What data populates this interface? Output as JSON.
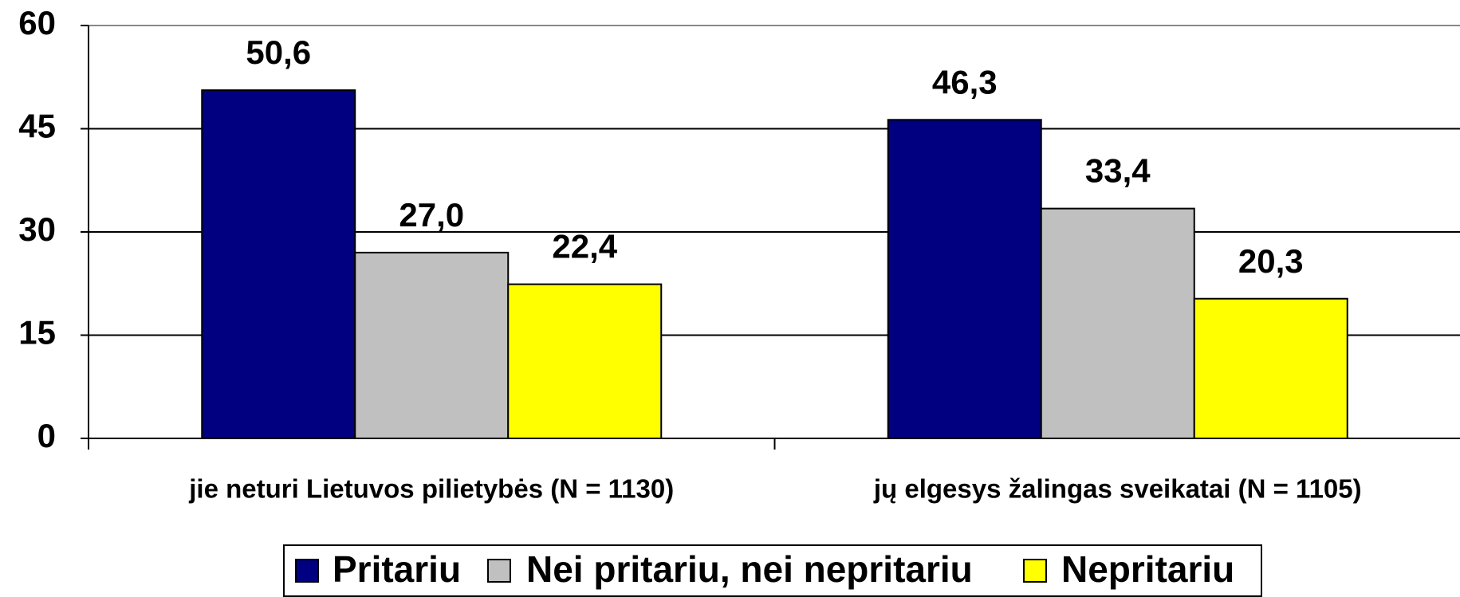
{
  "chart_data": {
    "type": "bar",
    "categories": [
      "jie neturi Lietuvos pilietybės (N = 1130)",
      "jų elgesys žalingas sveikatai (N = 1105)"
    ],
    "series": [
      {
        "name": "Pritariu",
        "color": "#000080",
        "values": [
          50.6,
          46.3
        ],
        "value_labels": [
          "50,6",
          "46,3"
        ]
      },
      {
        "name": "Nei pritariu, nei nepritariu",
        "color": "#c0c0c0",
        "values": [
          27.0,
          33.4
        ],
        "value_labels": [
          "27,0",
          "33,4"
        ]
      },
      {
        "name": "Nepritariu",
        "color": "#ffff00",
        "values": [
          22.4,
          20.3
        ],
        "value_labels": [
          "22,4",
          "20,3"
        ]
      }
    ],
    "ylim": [
      0,
      60
    ],
    "yticks": [
      0,
      15,
      30,
      45,
      60
    ],
    "grid": true,
    "legend": "bottom"
  }
}
